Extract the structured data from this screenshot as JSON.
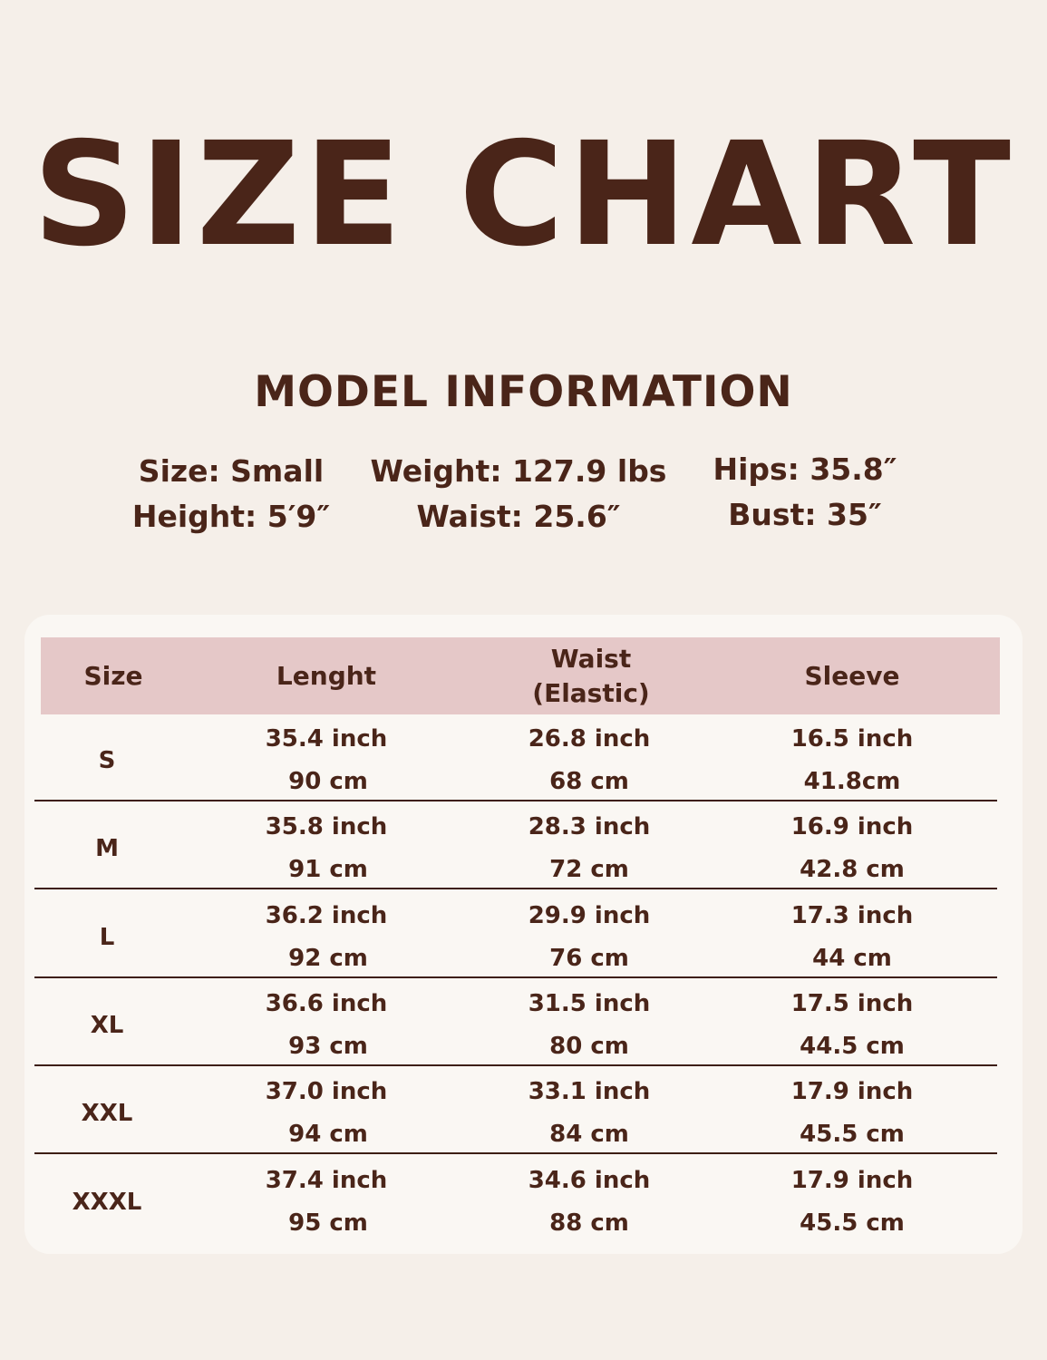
{
  "title": "SIZE CHART",
  "model": {
    "heading": "MODEL INFORMATION",
    "size": "Size: Small",
    "height": "Height: 5′9″",
    "weight": "Weight: 127.9 lbs",
    "waist": "Waist: 25.6″",
    "hips": "Hips: 35.8″",
    "bust": "Bust: 35″"
  },
  "table": {
    "headers": [
      "Size",
      "Lenght",
      "Waist\n(Elastic)",
      "Sleeve"
    ],
    "rows": [
      {
        "size": "S",
        "length": [
          "35.4 inch",
          "90 cm"
        ],
        "waist": [
          "26.8 inch",
          "68 cm"
        ],
        "sleeve": [
          "16.5 inch",
          "41.8cm"
        ]
      },
      {
        "size": "M",
        "length": [
          "35.8 inch",
          "91 cm"
        ],
        "waist": [
          "28.3 inch",
          "72 cm"
        ],
        "sleeve": [
          "16.9 inch",
          "42.8 cm"
        ]
      },
      {
        "size": "L",
        "length": [
          "36.2 inch",
          "92 cm"
        ],
        "waist": [
          "29.9 inch",
          "76 cm"
        ],
        "sleeve": [
          "17.3 inch",
          "44 cm"
        ]
      },
      {
        "size": "XL",
        "length": [
          "36.6 inch",
          "93 cm"
        ],
        "waist": [
          "31.5 inch",
          "80 cm"
        ],
        "sleeve": [
          "17.5 inch",
          "44.5 cm"
        ]
      },
      {
        "size": "XXL",
        "length": [
          "37.0 inch",
          "94 cm"
        ],
        "waist": [
          "33.1 inch",
          "84 cm"
        ],
        "sleeve": [
          "17.9 inch",
          "45.5 cm"
        ]
      },
      {
        "size": "XXXL",
        "length": [
          "37.4 inch",
          "95 cm"
        ],
        "waist": [
          "34.6 inch",
          "88 cm"
        ],
        "sleeve": [
          "17.9 inch",
          "45.5 cm"
        ]
      }
    ]
  },
  "colors": {
    "background": "#f5efe9",
    "card": "#faf7f3",
    "header": "#e5c8c8",
    "text": "#4a2519"
  }
}
